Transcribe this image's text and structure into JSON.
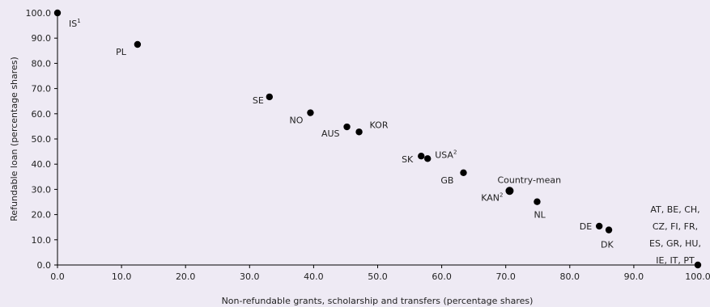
{
  "chart_data": {
    "type": "scatter",
    "xlabel": "Non-refundable grants, scholarship and transfers (percentage shares)",
    "ylabel": "Refundable loan (percentage shares)",
    "xlim": [
      0,
      100
    ],
    "ylim": [
      0,
      100
    ],
    "x_ticks": [
      "0.0",
      "10.0",
      "20.0",
      "30.0",
      "40.0",
      "50.0",
      "60.0",
      "70.0",
      "80.0",
      "90.0",
      "100.0"
    ],
    "y_ticks": [
      "0.0",
      "10.0",
      "20.0",
      "30.0",
      "40.0",
      "50.0",
      "60.0",
      "70.0",
      "80.0",
      "90.0",
      "100.0"
    ],
    "grid": false,
    "marker_color": "#000000",
    "background_color": "#eeeaf4",
    "points": [
      {
        "label": "IS",
        "sup": "1",
        "x": 0.0,
        "y": 100.0
      },
      {
        "label": "PL",
        "sup": "",
        "x": 12.5,
        "y": 87.5
      },
      {
        "label": "SE",
        "sup": "",
        "x": 33.1,
        "y": 66.7
      },
      {
        "label": "NO",
        "sup": "",
        "x": 39.5,
        "y": 60.4
      },
      {
        "label": "AUS",
        "sup": "",
        "x": 45.2,
        "y": 54.8
      },
      {
        "label": "KOR",
        "sup": "",
        "x": 47.1,
        "y": 52.8
      },
      {
        "label": "SK",
        "sup": "",
        "x": 56.8,
        "y": 43.2
      },
      {
        "label": "USA",
        "sup": "2",
        "x": 57.8,
        "y": 42.2
      },
      {
        "label": "GB",
        "sup": "",
        "x": 63.4,
        "y": 36.6
      },
      {
        "label": "Country-mean",
        "sup": "",
        "x": 70.6,
        "y": 29.4
      },
      {
        "label": "KAN",
        "sup": "2",
        "x": 70.6,
        "y": 29.4
      },
      {
        "label": "NL",
        "sup": "",
        "x": 74.9,
        "y": 25.1
      },
      {
        "label": "DE",
        "sup": "",
        "x": 84.6,
        "y": 15.4
      },
      {
        "label": "DK",
        "sup": "",
        "x": 86.1,
        "y": 13.9
      },
      {
        "label": "AT, BE, CH, CZ, FI, FR, ES, GR, HU, IE, IT, PT",
        "sup": "",
        "x": 100.0,
        "y": 0.0
      }
    ],
    "group_label_lines": [
      "AT, BE, CH,",
      "CZ, FI, FR,",
      "ES, GR, HU,",
      "IE, IT, PT"
    ]
  }
}
